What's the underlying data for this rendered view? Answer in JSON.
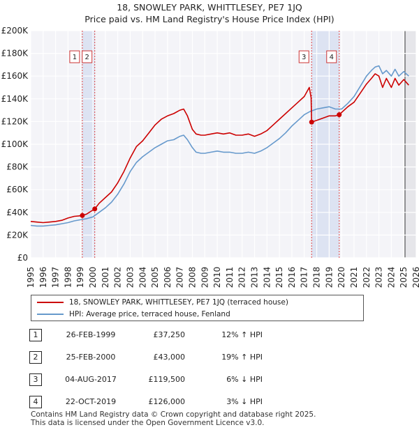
{
  "chart_data": {
    "type": "line",
    "title": "18, SNOWLEY PARK, WHITTLESEY, PE7 1JQ",
    "subtitle": "Price paid vs. HM Land Registry's House Price Index (HPI)",
    "xlabel": "",
    "ylabel": "",
    "xlim": [
      1995,
      2026
    ],
    "ylim": [
      0,
      200000
    ],
    "x_ticks": [
      "1995",
      "1996",
      "1997",
      "1998",
      "1999",
      "2000",
      "2001",
      "2002",
      "2003",
      "2004",
      "2005",
      "2006",
      "2007",
      "2008",
      "2009",
      "2010",
      "2011",
      "2012",
      "2013",
      "2014",
      "2015",
      "2016",
      "2017",
      "2018",
      "2019",
      "2020",
      "2021",
      "2022",
      "2023",
      "2024",
      "2025",
      "2026"
    ],
    "y_ticks": [
      {
        "value": 0,
        "label": "£0"
      },
      {
        "value": 20000,
        "label": "£20K"
      },
      {
        "value": 40000,
        "label": "£40K"
      },
      {
        "value": 60000,
        "label": "£60K"
      },
      {
        "value": 80000,
        "label": "£80K"
      },
      {
        "value": 100000,
        "label": "£100K"
      },
      {
        "value": 120000,
        "label": "£120K"
      },
      {
        "value": 140000,
        "label": "£140K"
      },
      {
        "value": 160000,
        "label": "£160K"
      },
      {
        "value": 180000,
        "label": "£180K"
      },
      {
        "value": 200000,
        "label": "£200K"
      }
    ],
    "grid": true,
    "series": [
      {
        "name": "18, SNOWLEY PARK, WHITTLESEY, PE7 1JQ (terraced house)",
        "color": "#cc0000",
        "x": [
          1995.0,
          1995.5,
          1996.0,
          1996.5,
          1997.0,
          1997.5,
          1998.0,
          1998.5,
          1999.0,
          1999.15,
          1999.5,
          2000.0,
          2000.15,
          2000.5,
          2001.0,
          2001.5,
          2002.0,
          2002.5,
          2003.0,
          2003.5,
          2004.0,
          2004.5,
          2005.0,
          2005.5,
          2006.0,
          2006.5,
          2007.0,
          2007.3,
          2007.6,
          2008.0,
          2008.3,
          2008.7,
          2009.0,
          2009.5,
          2010.0,
          2010.5,
          2011.0,
          2011.5,
          2012.0,
          2012.5,
          2013.0,
          2013.5,
          2014.0,
          2014.5,
          2015.0,
          2015.5,
          2016.0,
          2016.5,
          2017.0,
          2017.4,
          2017.55,
          2017.59,
          2018.0,
          2018.5,
          2019.0,
          2019.5,
          2019.8,
          2020.0,
          2020.5,
          2021.0,
          2021.5,
          2022.0,
          2022.4,
          2022.7,
          2023.0,
          2023.3,
          2023.6,
          2024.0,
          2024.3,
          2024.6,
          2025.0,
          2025.4
        ],
        "values": [
          32000,
          31500,
          31000,
          31500,
          32000,
          33000,
          35000,
          36500,
          37000,
          37250,
          38500,
          42000,
          43000,
          48000,
          53000,
          58000,
          66000,
          76000,
          88000,
          98000,
          103000,
          110000,
          117000,
          122000,
          125000,
          127000,
          130000,
          131000,
          125000,
          113000,
          109000,
          108000,
          108000,
          109000,
          110000,
          109000,
          110000,
          108000,
          108000,
          109000,
          107000,
          109000,
          112000,
          117000,
          122000,
          127000,
          132000,
          137000,
          142000,
          150000,
          141000,
          119500,
          121000,
          123000,
          125000,
          125000,
          126000,
          128000,
          133000,
          137000,
          145000,
          153000,
          158000,
          162000,
          160000,
          150000,
          158000,
          150000,
          158000,
          152000,
          157000,
          152000
        ]
      },
      {
        "name": "HPI: Average price, terraced house, Fenland",
        "color": "#6699cc",
        "x": [
          1995.0,
          1995.5,
          1996.0,
          1996.5,
          1997.0,
          1997.5,
          1998.0,
          1998.5,
          1999.0,
          1999.5,
          2000.0,
          2000.5,
          2001.0,
          2001.5,
          2002.0,
          2002.5,
          2003.0,
          2003.5,
          2004.0,
          2004.5,
          2005.0,
          2005.5,
          2006.0,
          2006.5,
          2007.0,
          2007.3,
          2007.6,
          2008.0,
          2008.3,
          2008.7,
          2009.0,
          2009.5,
          2010.0,
          2010.5,
          2011.0,
          2011.5,
          2012.0,
          2012.5,
          2013.0,
          2013.5,
          2014.0,
          2014.5,
          2015.0,
          2015.5,
          2016.0,
          2016.5,
          2017.0,
          2017.5,
          2018.0,
          2018.5,
          2019.0,
          2019.5,
          2020.0,
          2020.5,
          2021.0,
          2021.5,
          2022.0,
          2022.4,
          2022.7,
          2023.0,
          2023.3,
          2023.6,
          2024.0,
          2024.3,
          2024.6,
          2025.0,
          2025.4
        ],
        "values": [
          28500,
          28000,
          28000,
          28500,
          29000,
          30000,
          31000,
          32500,
          33500,
          34500,
          36000,
          40000,
          44000,
          49000,
          56000,
          65000,
          76000,
          84000,
          89000,
          93000,
          97000,
          100000,
          103000,
          104000,
          107000,
          108000,
          104000,
          97000,
          93000,
          92000,
          92000,
          93000,
          94000,
          93000,
          93000,
          92000,
          92000,
          93000,
          92000,
          94000,
          97000,
          101000,
          105000,
          110000,
          116000,
          121000,
          126000,
          129000,
          131000,
          132000,
          133000,
          131000,
          131000,
          136000,
          142000,
          151000,
          160000,
          165000,
          168000,
          169000,
          162000,
          165000,
          160000,
          166000,
          160000,
          164000,
          160000
        ]
      }
    ],
    "events": [
      {
        "id": "1",
        "x": 1999.15,
        "value": 37250,
        "date": "26-FEB-1999",
        "price": "£37,250",
        "hpi": "12% ↑ HPI"
      },
      {
        "id": "2",
        "x": 2000.15,
        "value": 43000,
        "date": "25-FEB-2000",
        "price": "£43,000",
        "hpi": "19% ↑ HPI"
      },
      {
        "id": "3",
        "x": 2017.59,
        "value": 119500,
        "date": "04-AUG-2017",
        "price": "£119,500",
        "hpi": "6% ↓ HPI"
      },
      {
        "id": "4",
        "x": 2019.81,
        "value": 126000,
        "date": "22-OCT-2019",
        "price": "£126,000",
        "hpi": "3% ↓ HPI"
      }
    ],
    "shaded_ranges": [
      [
        1999.15,
        2000.15
      ],
      [
        2017.59,
        2019.81
      ]
    ],
    "forecast_start": 2025.1,
    "legend_position": "bottom"
  },
  "footer": {
    "line1": "Contains HM Land Registry data © Crown copyright and database right 2025.",
    "line2": "This data is licensed under the Open Government Licence v3.0."
  }
}
